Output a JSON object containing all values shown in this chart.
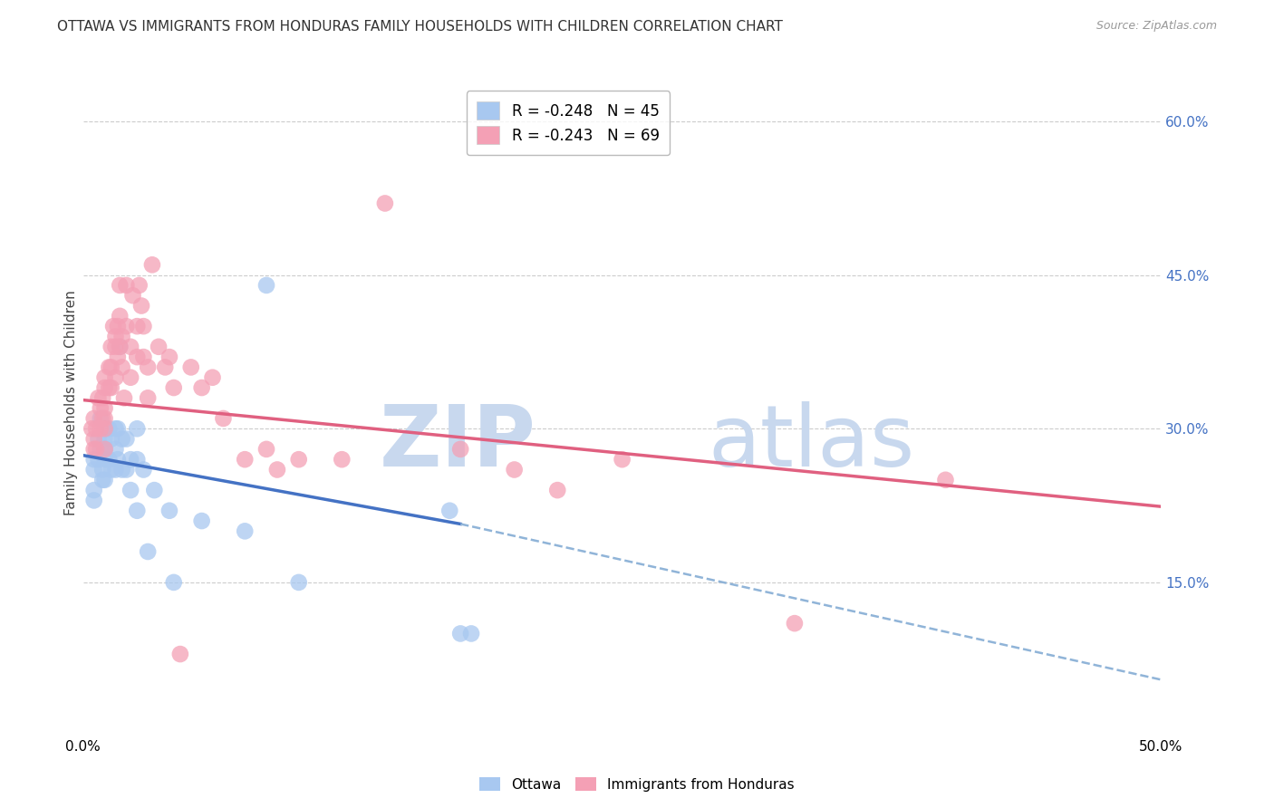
{
  "title": "OTTAWA VS IMMIGRANTS FROM HONDURAS FAMILY HOUSEHOLDS WITH CHILDREN CORRELATION CHART",
  "source": "Source: ZipAtlas.com",
  "ylabel": "Family Households with Children",
  "right_ytick_labels": [
    "60.0%",
    "45.0%",
    "30.0%",
    "15.0%"
  ],
  "right_ytick_values": [
    0.6,
    0.45,
    0.3,
    0.15
  ],
  "xlim": [
    0.0,
    0.5
  ],
  "ylim": [
    0.0,
    0.65
  ],
  "xtick_values": [
    0.0,
    0.1,
    0.2,
    0.3,
    0.4,
    0.5
  ],
  "xtick_labels": [
    "0.0%",
    "",
    "",
    "",
    "",
    "50.0%"
  ],
  "legend_entries": [
    {
      "label": "R = -0.248   N = 45",
      "color": "#a8c8f0"
    },
    {
      "label": "R = -0.243   N = 69",
      "color": "#f4a0b5"
    }
  ],
  "ottawa_color": "#a8c8f0",
  "honduras_color": "#f4a0b5",
  "trend_ottawa_solid_color": "#4472c4",
  "trend_ottawa_dashed_color": "#90b4d8",
  "trend_honduras_color": "#e06080",
  "watermark_zip": "ZIP",
  "watermark_atlas": "atlas",
  "watermark_color": "#c8d8ee",
  "ottawa_scatter_x": [
    0.005,
    0.005,
    0.005,
    0.005,
    0.007,
    0.007,
    0.008,
    0.008,
    0.009,
    0.009,
    0.01,
    0.01,
    0.01,
    0.01,
    0.012,
    0.012,
    0.013,
    0.013,
    0.015,
    0.015,
    0.015,
    0.016,
    0.016,
    0.017,
    0.018,
    0.018,
    0.02,
    0.02,
    0.022,
    0.022,
    0.025,
    0.025,
    0.025,
    0.028,
    0.03,
    0.033,
    0.04,
    0.042,
    0.055,
    0.075,
    0.085,
    0.1,
    0.17,
    0.175,
    0.18
  ],
  "ottawa_scatter_y": [
    0.27,
    0.26,
    0.24,
    0.23,
    0.29,
    0.27,
    0.31,
    0.28,
    0.26,
    0.25,
    0.29,
    0.28,
    0.27,
    0.25,
    0.3,
    0.27,
    0.29,
    0.26,
    0.3,
    0.28,
    0.26,
    0.3,
    0.27,
    0.38,
    0.29,
    0.26,
    0.29,
    0.26,
    0.27,
    0.24,
    0.3,
    0.27,
    0.22,
    0.26,
    0.18,
    0.24,
    0.22,
    0.15,
    0.21,
    0.2,
    0.44,
    0.15,
    0.22,
    0.1,
    0.1
  ],
  "honduras_scatter_x": [
    0.004,
    0.005,
    0.005,
    0.005,
    0.006,
    0.006,
    0.007,
    0.008,
    0.008,
    0.009,
    0.009,
    0.01,
    0.01,
    0.01,
    0.01,
    0.01,
    0.01,
    0.012,
    0.012,
    0.013,
    0.013,
    0.013,
    0.014,
    0.015,
    0.015,
    0.015,
    0.016,
    0.016,
    0.017,
    0.017,
    0.017,
    0.018,
    0.018,
    0.019,
    0.02,
    0.02,
    0.022,
    0.022,
    0.023,
    0.025,
    0.025,
    0.026,
    0.027,
    0.028,
    0.028,
    0.03,
    0.03,
    0.032,
    0.035,
    0.038,
    0.04,
    0.042,
    0.045,
    0.05,
    0.055,
    0.06,
    0.065,
    0.075,
    0.085,
    0.09,
    0.1,
    0.12,
    0.14,
    0.175,
    0.2,
    0.22,
    0.25,
    0.33,
    0.4
  ],
  "honduras_scatter_y": [
    0.3,
    0.29,
    0.31,
    0.28,
    0.3,
    0.28,
    0.33,
    0.32,
    0.3,
    0.33,
    0.31,
    0.35,
    0.34,
    0.32,
    0.31,
    0.3,
    0.28,
    0.36,
    0.34,
    0.38,
    0.36,
    0.34,
    0.4,
    0.39,
    0.38,
    0.35,
    0.4,
    0.37,
    0.44,
    0.41,
    0.38,
    0.39,
    0.36,
    0.33,
    0.44,
    0.4,
    0.38,
    0.35,
    0.43,
    0.4,
    0.37,
    0.44,
    0.42,
    0.4,
    0.37,
    0.36,
    0.33,
    0.46,
    0.38,
    0.36,
    0.37,
    0.34,
    0.08,
    0.36,
    0.34,
    0.35,
    0.31,
    0.27,
    0.28,
    0.26,
    0.27,
    0.27,
    0.52,
    0.28,
    0.26,
    0.24,
    0.27,
    0.11,
    0.25
  ],
  "ottawa_trend_solid": {
    "x_start": 0.0,
    "x_end": 0.175,
    "y_start": 0.274,
    "y_end": 0.207
  },
  "ottawa_trend_dashed": {
    "x_start": 0.175,
    "x_end": 0.5,
    "y_start": 0.207,
    "y_end": 0.055
  },
  "honduras_trend": {
    "x_start": 0.0,
    "x_end": 0.5,
    "y_start": 0.328,
    "y_end": 0.224
  },
  "grid_color": "#cccccc",
  "background_color": "#ffffff",
  "title_fontsize": 11,
  "axis_label_fontsize": 11,
  "tick_label_fontsize": 11,
  "right_tick_color": "#4472c4"
}
